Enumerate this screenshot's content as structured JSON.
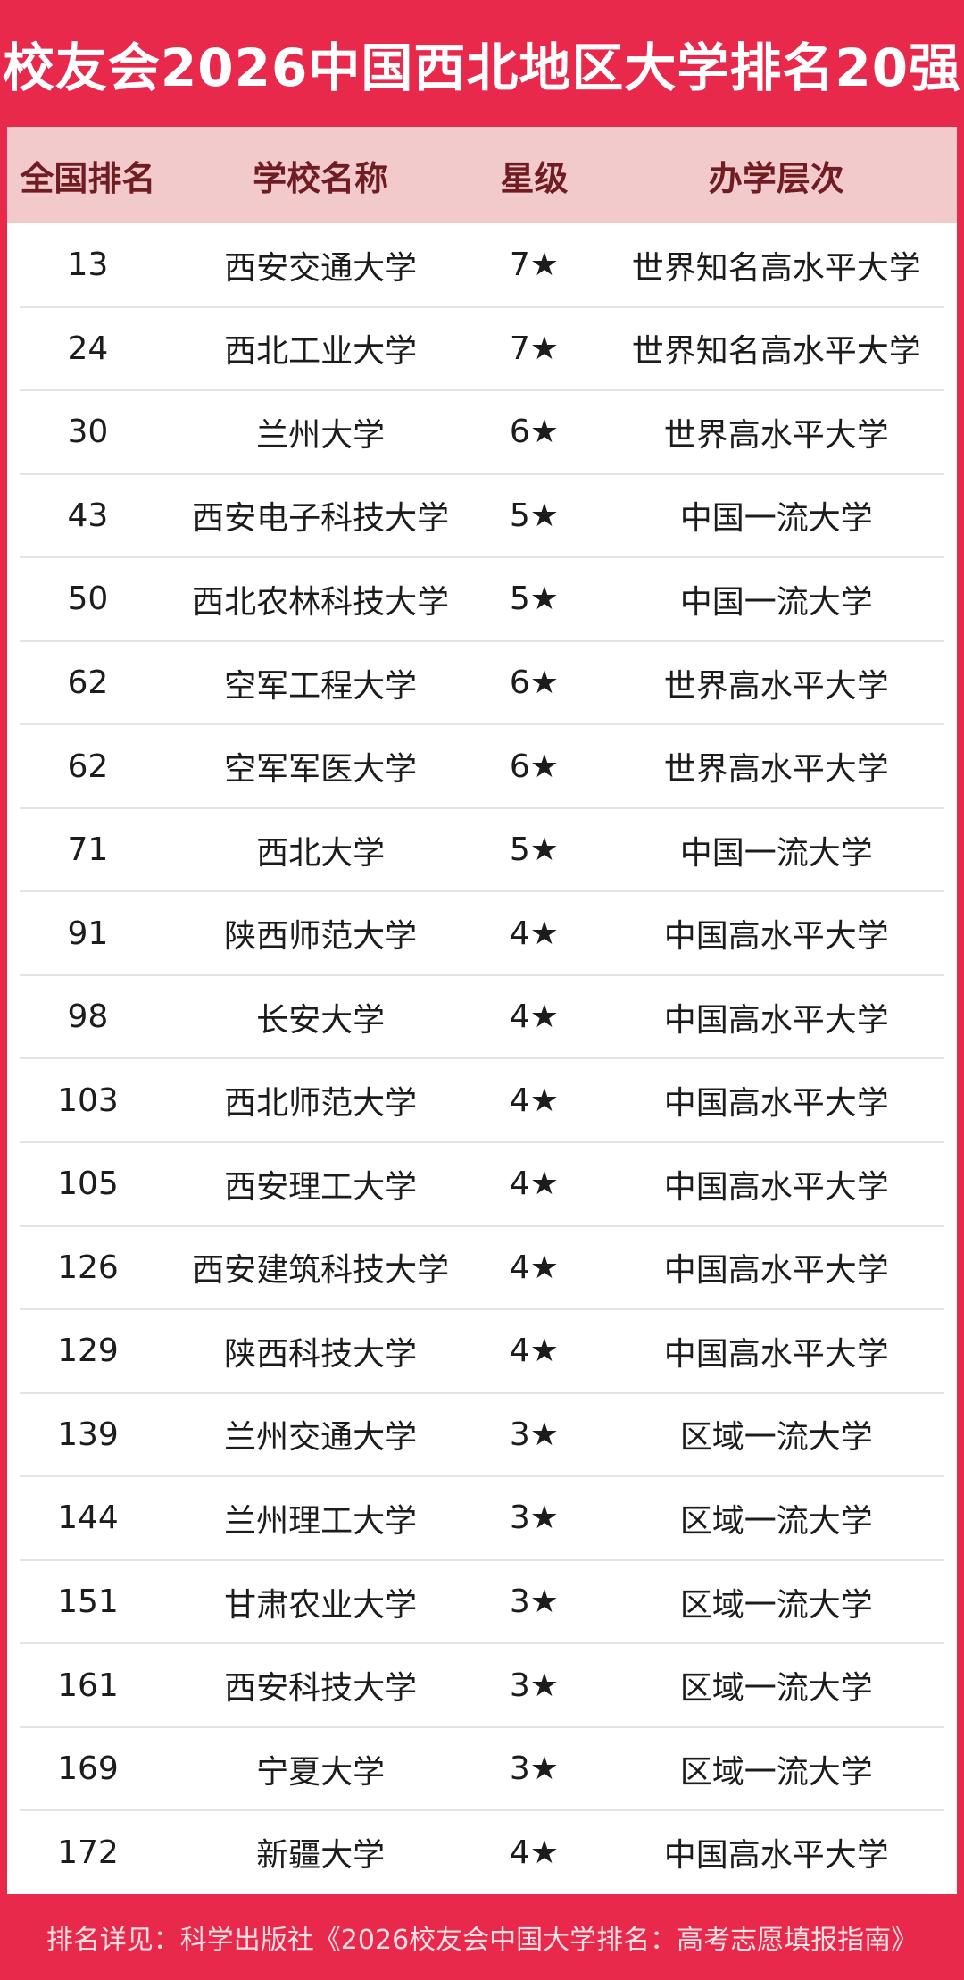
{
  "title": "校友会2026中国西北地区大学排名20强",
  "footer": "排名详见：科学出版社《2026校友会中国大学排名：高考志愿填报指南》",
  "colors": {
    "background_red": "#E8294B",
    "header_pink": "#F2CACB",
    "header_text_maroon": "#701C23",
    "row_text": "#1C1C1C",
    "divider_gray": "#E3E3E3",
    "title_white": "#FFFFFF",
    "footer_text_pink": "#F9DEE2"
  },
  "chart_data": {
    "type": "table",
    "title": "校友会2026中国西北地区大学排名20强",
    "columns": [
      "全国排名",
      "学校名称",
      "星级",
      "办学层次"
    ],
    "rows": [
      [
        13,
        "西安交通大学",
        "7★",
        "世界知名高水平大学"
      ],
      [
        24,
        "西北工业大学",
        "7★",
        "世界知名高水平大学"
      ],
      [
        30,
        "兰州大学",
        "6★",
        "世界高水平大学"
      ],
      [
        43,
        "西安电子科技大学",
        "5★",
        "中国一流大学"
      ],
      [
        50,
        "西北农林科技大学",
        "5★",
        "中国一流大学"
      ],
      [
        62,
        "空军工程大学",
        "6★",
        "世界高水平大学"
      ],
      [
        62,
        "空军军医大学",
        "6★",
        "世界高水平大学"
      ],
      [
        71,
        "西北大学",
        "5★",
        "中国一流大学"
      ],
      [
        91,
        "陕西师范大学",
        "4★",
        "中国高水平大学"
      ],
      [
        98,
        "长安大学",
        "4★",
        "中国高水平大学"
      ],
      [
        103,
        "西北师范大学",
        "4★",
        "中国高水平大学"
      ],
      [
        105,
        "西安理工大学",
        "4★",
        "中国高水平大学"
      ],
      [
        126,
        "西安建筑科技大学",
        "4★",
        "中国高水平大学"
      ],
      [
        129,
        "陕西科技大学",
        "4★",
        "中国高水平大学"
      ],
      [
        139,
        "兰州交通大学",
        "3★",
        "区域一流大学"
      ],
      [
        144,
        "兰州理工大学",
        "3★",
        "区域一流大学"
      ],
      [
        151,
        "甘肃农业大学",
        "3★",
        "区域一流大学"
      ],
      [
        161,
        "西安科技大学",
        "3★",
        "区域一流大学"
      ],
      [
        169,
        "宁夏大学",
        "3★",
        "区域一流大学"
      ],
      [
        172,
        "新疆大学",
        "4★",
        "中国高水平大学"
      ]
    ],
    "layout": {
      "grid": false,
      "row_count": 20,
      "column_alignment": "center"
    }
  }
}
